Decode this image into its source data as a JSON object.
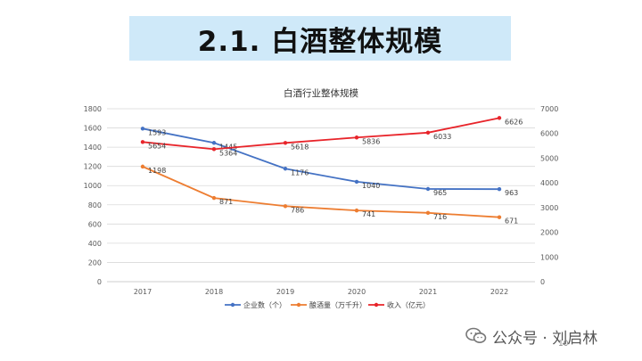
{
  "slide": {
    "heading": "2.1. 白酒整体规模",
    "page_number": "10",
    "watermark": "公众号 · 刘启林",
    "watermark_icon": "wechat-icon"
  },
  "chart_data": {
    "type": "line",
    "title": "白酒行业整体规模",
    "categories": [
      "2017",
      "2018",
      "2019",
      "2020",
      "2021",
      "2022"
    ],
    "y_left": {
      "range": [
        0,
        1800
      ],
      "ticks": [
        "0",
        "200",
        "400",
        "600",
        "800",
        "1000",
        "1200",
        "1400",
        "1600",
        "1800"
      ]
    },
    "y_right": {
      "range": [
        0,
        7000
      ],
      "ticks": [
        "0",
        "1000",
        "2000",
        "3000",
        "4000",
        "5000",
        "6000",
        "7000"
      ]
    },
    "grid": true,
    "legend_position": "bottom",
    "series": [
      {
        "name": "企业数（个）",
        "axis": "left",
        "color": "#4472c4",
        "values": [
          1593,
          1445,
          1176,
          1040,
          965,
          963
        ],
        "labels": [
          "1593",
          "1445",
          "1176",
          "1040",
          "965",
          "963"
        ]
      },
      {
        "name": "酿酒量（万千升）",
        "axis": "left",
        "color": "#ed7d31",
        "values": [
          1198,
          871,
          786,
          741,
          716,
          671
        ],
        "labels": [
          "1198",
          "871",
          "786",
          "741",
          "716",
          "671"
        ]
      },
      {
        "name": "收入（亿元）",
        "axis": "right",
        "color": "#e8242a",
        "values": [
          5654,
          5364,
          5618,
          5836,
          6033,
          6626
        ],
        "labels": [
          "5654",
          "5364",
          "5618",
          "5836",
          "6033",
          "6626"
        ]
      }
    ]
  }
}
